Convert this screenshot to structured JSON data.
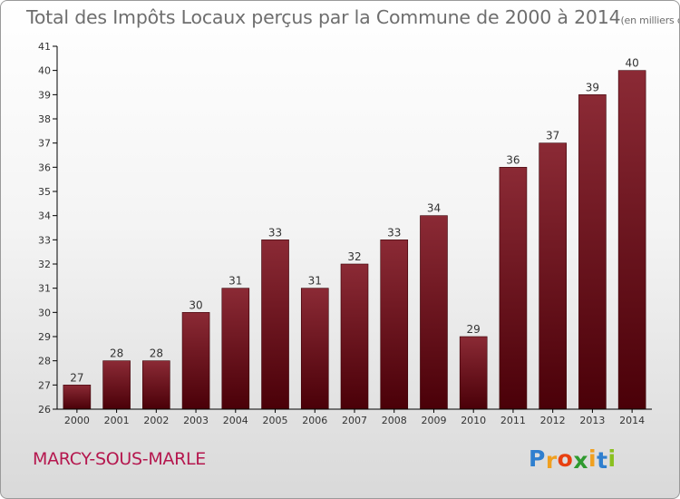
{
  "title": "Total des Impôts Locaux perçus par la Commune de 2000 à 2014",
  "unit": "(en milliers d'€)",
  "commune": "MARCY-SOUS-MARLE",
  "logo": {
    "letters": [
      "P",
      "r",
      "o",
      "x",
      "i",
      "t",
      "i"
    ],
    "colors": [
      "#2f7fcf",
      "#f0a020",
      "#e84010",
      "#2f9a2f",
      "#f0a020",
      "#2f7fcf",
      "#8ac020"
    ]
  },
  "colors": {
    "bar_top": "#8b2a35",
    "bar_bottom": "#4a0008",
    "axis": "#000000",
    "text": "#333333"
  },
  "chart_data": {
    "type": "bar",
    "title": "Total des Impôts Locaux perçus par la Commune de 2000 à 2014",
    "xlabel": "",
    "ylabel": "",
    "categories": [
      "2000",
      "2001",
      "2002",
      "2003",
      "2004",
      "2005",
      "2006",
      "2007",
      "2008",
      "2009",
      "2010",
      "2011",
      "2012",
      "2013",
      "2014"
    ],
    "values": [
      27,
      28,
      28,
      30,
      31,
      33,
      31,
      32,
      33,
      34,
      29,
      36,
      37,
      39,
      40
    ],
    "data_labels": [
      "27",
      "28",
      "28",
      "30",
      "31",
      "33",
      "31",
      "32",
      "33",
      "34",
      "29",
      "36",
      "37",
      "39",
      "40"
    ],
    "yticks": [
      "26",
      "27",
      "28",
      "29",
      "30",
      "31",
      "32",
      "33",
      "34",
      "35",
      "36",
      "37",
      "38",
      "39",
      "40",
      "41"
    ],
    "ylim": [
      26,
      41
    ],
    "grid": false,
    "legend": "none"
  }
}
